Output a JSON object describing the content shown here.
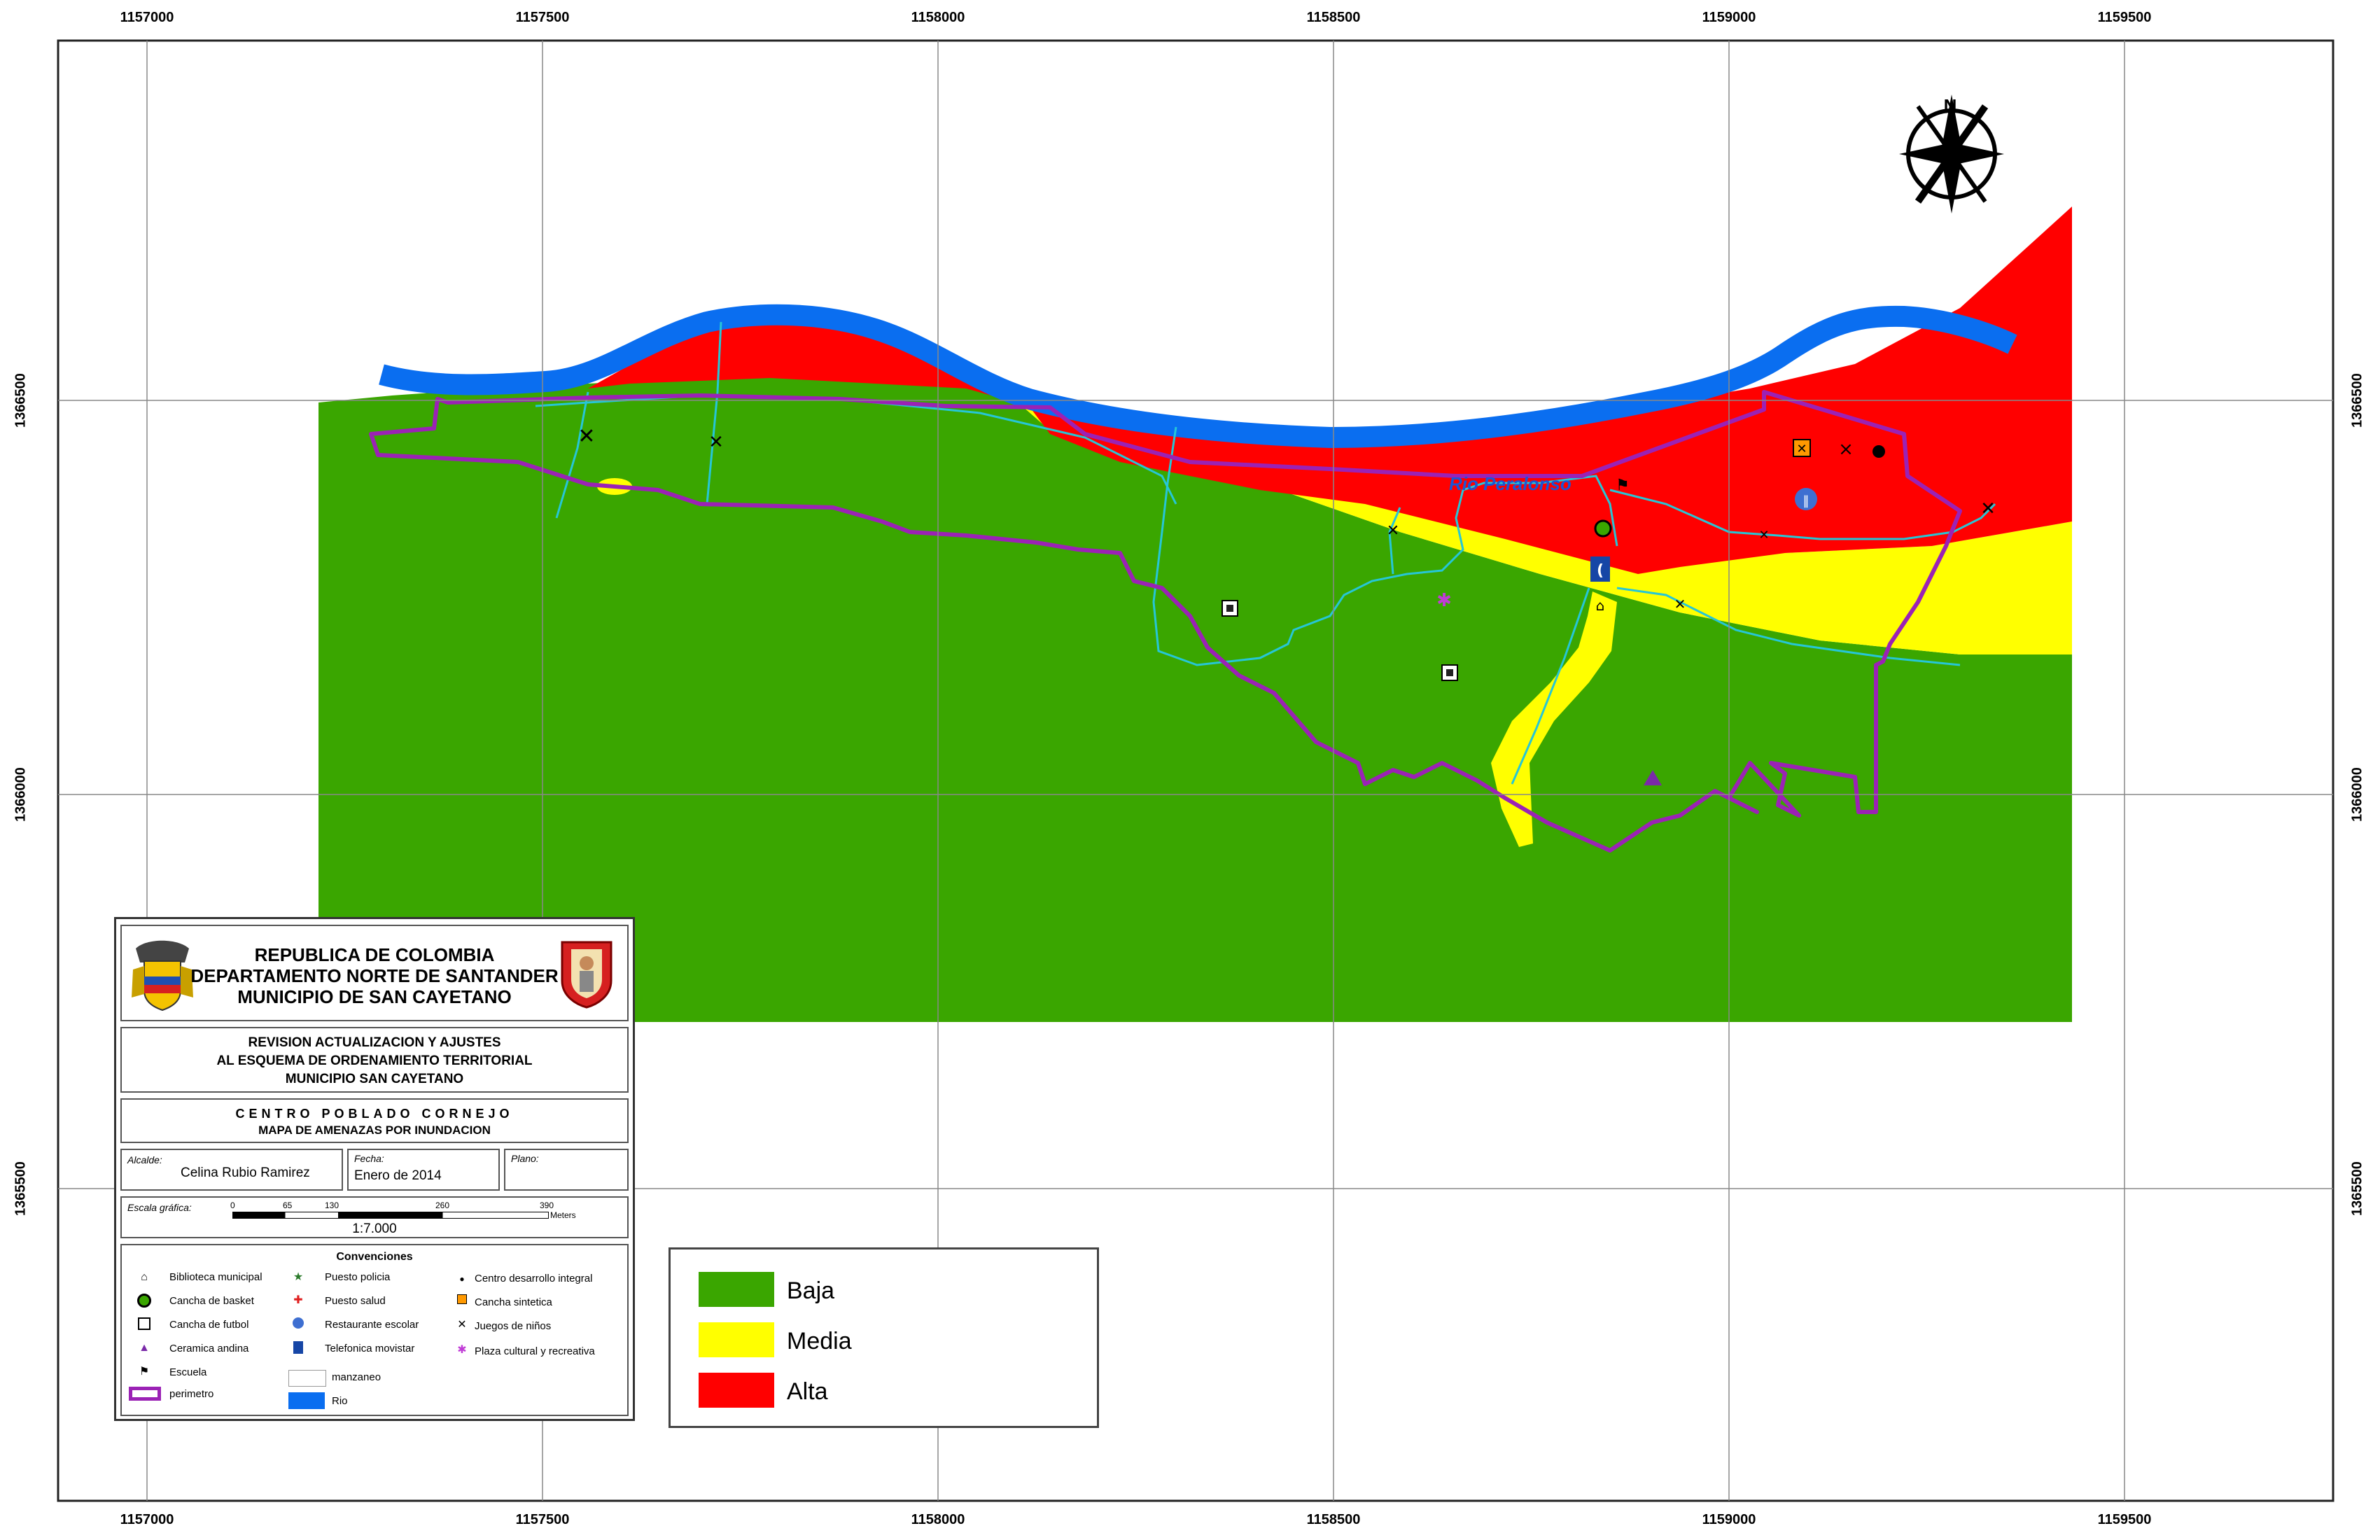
{
  "header": {
    "line1": "REPUBLICA DE COLOMBIA",
    "line2": "DEPARTAMENTO NORTE DE SANTANDER",
    "line3": "MUNICIPIO DE SAN CAYETANO"
  },
  "project": {
    "line1": "REVISION ACTUALIZACION Y AJUSTES",
    "line2": "AL ESQUEMA DE ORDENAMIENTO TERRITORIAL",
    "line3": "MUNICIPIO SAN CAYETANO"
  },
  "map_title": {
    "line1": "CENTRO POBLADO CORNEJO",
    "line2": "MAPA DE AMENAZAS POR INUNDACION"
  },
  "info": {
    "alcalde_label": "Alcalde:",
    "alcalde_value": "Celina Rubio Ramirez",
    "fecha_label": "Fecha:",
    "fecha_value": "Enero de 2014",
    "plano_label": "Plano:"
  },
  "scale": {
    "label": "Escala gráfica:",
    "ticks": [
      "0",
      "65",
      "130",
      "260",
      "390"
    ],
    "unit": "Meters",
    "ratio": "1:7.000"
  },
  "conventions": {
    "title": "Convenciones",
    "items": [
      {
        "label": "Biblioteca municipal",
        "icon": "library-icon"
      },
      {
        "label": "Cancha de basket",
        "icon": "basket-court-icon"
      },
      {
        "label": "Cancha de futbol",
        "icon": "soccer-field-icon"
      },
      {
        "label": "Ceramica andina",
        "icon": "ceramics-triangle-icon"
      },
      {
        "label": "Escuela",
        "icon": "school-flag-icon"
      },
      {
        "label": "perimetro",
        "icon": "perimeter-swatch"
      },
      {
        "label": "Puesto policia",
        "icon": "police-star-icon"
      },
      {
        "label": "Puesto salud",
        "icon": "health-cross-icon"
      },
      {
        "label": "Restaurante escolar",
        "icon": "restaurant-icon"
      },
      {
        "label": "Telefonica movistar",
        "icon": "phone-icon"
      },
      {
        "label": "manzaneo",
        "icon": "block-swatch"
      },
      {
        "label": "Rio",
        "icon": "river-swatch"
      },
      {
        "label": "Centro desarrollo integral",
        "icon": "development-center-icon"
      },
      {
        "label": "Cancha sintetica",
        "icon": "synthetic-court-icon"
      },
      {
        "label": "Juegos de niños",
        "icon": "playground-icon"
      },
      {
        "label": "Plaza cultural y recreativa",
        "icon": "plaza-icon"
      }
    ]
  },
  "threat_legend": [
    {
      "label": "Baja",
      "color": "#3aa600"
    },
    {
      "label": "Media",
      "color": "#ffff00"
    },
    {
      "label": "Alta",
      "color": "#ff0000"
    }
  ],
  "river_label": "Rio Peralonso",
  "north_letter": "N",
  "grid": {
    "x_labels": [
      "1157000",
      "1157500",
      "1158000",
      "1158500",
      "1159000",
      "1159500"
    ],
    "y_labels": [
      "1366500",
      "1366000",
      "1365500"
    ]
  },
  "colors": {
    "baja": "#3aa600",
    "media": "#ffff00",
    "alta": "#ff0000",
    "river": "#0a6ef0",
    "perimeter": "#9b22b5",
    "streams": "#26c6d6"
  }
}
